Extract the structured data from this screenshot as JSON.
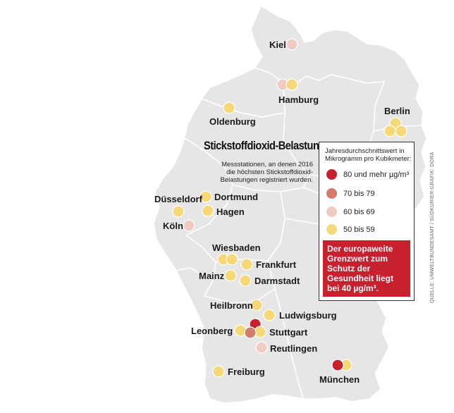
{
  "title": "Stickstoffdioxid-Belastung",
  "subtitle": "Messstationen, an denen 2016 die höchsten Stickstoffdioxid-Belastungen registriert wurden.",
  "legend": {
    "heading": "Jahresdurchschnittswert in Mikrogramm pro Kubikmeter:",
    "items": [
      {
        "label": "80 und mehr µg/m³",
        "color": "#c8202e"
      },
      {
        "label": "70 bis 79",
        "color": "#d27c6a"
      },
      {
        "label": "60 bis 69",
        "color": "#efcbc4"
      },
      {
        "label": "50 bis 59",
        "color": "#f7d878"
      }
    ]
  },
  "note": "Der europaweite Grenzwert zum Schutz der Gesundheit liegt bei 40 µg/m³.",
  "source": "QUELLE: UMWELTBUNDESAMT / SÜDKURIER-GRAFIK: DORA",
  "colors": {
    "land": "#e6e6e6",
    "border": "#ffffff"
  },
  "cities": [
    {
      "name": "Kiel",
      "category": "60 bis 69"
    },
    {
      "name": "Hamburg",
      "category": "60 bis 69 / 50 bis 59"
    },
    {
      "name": "Oldenburg",
      "category": "50 bis 59"
    },
    {
      "name": "Berlin",
      "category": "50 bis 59"
    },
    {
      "name": "Düsseldorf",
      "category": "50 bis 59"
    },
    {
      "name": "Dortmund",
      "category": "50 bis 59"
    },
    {
      "name": "Hagen",
      "category": "50 bis 59"
    },
    {
      "name": "Köln",
      "category": "60 bis 69"
    },
    {
      "name": "Wiesbaden",
      "category": "50 bis 59"
    },
    {
      "name": "Frankfurt",
      "category": "50 bis 59"
    },
    {
      "name": "Mainz",
      "category": "50 bis 59"
    },
    {
      "name": "Darmstadt",
      "category": "50 bis 59"
    },
    {
      "name": "Heilbronn",
      "category": "50 bis 59"
    },
    {
      "name": "Ludwigsburg",
      "category": "50 bis 59"
    },
    {
      "name": "Leonberg",
      "category": "50 bis 59"
    },
    {
      "name": "Stuttgart",
      "category": "80 und mehr / 70 bis 79 / 50 bis 59"
    },
    {
      "name": "Reutlingen",
      "category": "60 bis 69"
    },
    {
      "name": "Freiburg",
      "category": "50 bis 59"
    },
    {
      "name": "München",
      "category": "80 und mehr / 50 bis 59"
    }
  ]
}
